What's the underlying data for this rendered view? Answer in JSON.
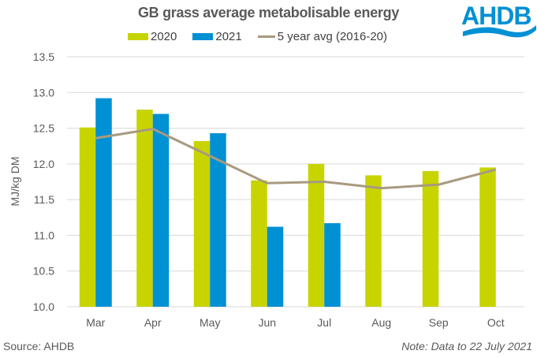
{
  "logo": {
    "text": "AHDB",
    "color": "#0090d4"
  },
  "footer": {
    "source": "Source: AHDB",
    "note": "Note: Data to 22 July 2021"
  },
  "chart_data": {
    "type": "bar",
    "title": "GB grass average metabolisable energy",
    "xlabel": "",
    "ylabel": "MJ/kg DM",
    "ylim": [
      10.0,
      13.5
    ],
    "yticks": [
      "10.0",
      "10.5",
      "11.0",
      "11.5",
      "12.0",
      "12.5",
      "13.0",
      "13.5"
    ],
    "ytick_values": [
      10.0,
      10.5,
      11.0,
      11.5,
      12.0,
      12.5,
      13.0,
      13.5
    ],
    "grid": true,
    "legend_position": "top-center",
    "categories": [
      "Mar",
      "Apr",
      "May",
      "Jun",
      "Jul",
      "Aug",
      "Sep",
      "Oct"
    ],
    "series": [
      {
        "name": "2020",
        "type": "bar",
        "color": "#c8d400",
        "values": [
          12.51,
          12.76,
          12.32,
          11.77,
          12.0,
          11.84,
          11.9,
          11.95
        ]
      },
      {
        "name": "2021",
        "type": "bar",
        "color": "#0090d4",
        "values": [
          12.92,
          12.7,
          12.43,
          11.12,
          11.17,
          null,
          null,
          null
        ]
      },
      {
        "name": "5 year avg (2016-20)",
        "type": "line",
        "color": "#a89a80",
        "values": [
          12.36,
          12.49,
          12.11,
          11.73,
          11.75,
          11.66,
          11.71,
          11.92
        ]
      }
    ]
  }
}
